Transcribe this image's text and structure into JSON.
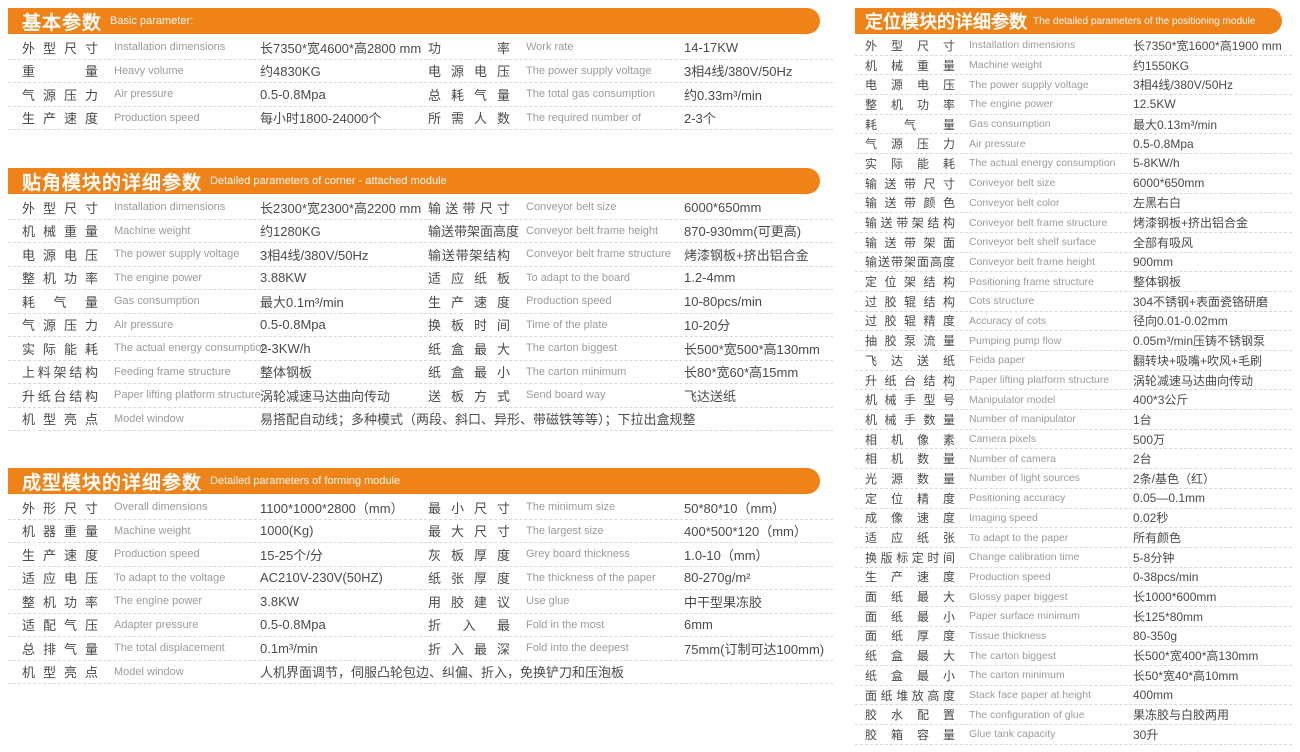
{
  "accent": "#f08318",
  "left_sections": [
    {
      "title_zh": "基本参数",
      "title_en": "Basic parameter:",
      "col_left": [
        {
          "zh": "外型尺寸",
          "en": "Installation dimensions",
          "val": "长7350*宽4600*高2800 mm"
        },
        {
          "zh": "重量",
          "en": "Heavy volume",
          "val": "约4830KG"
        },
        {
          "zh": "气源压力",
          "en": "Air pressure",
          "val": "0.5-0.8Mpa"
        },
        {
          "zh": "生产速度",
          "en": "Production speed",
          "val": "每小时1800-24000个"
        }
      ],
      "col_right": [
        {
          "zh": "功率",
          "en": "Work rate",
          "val": "14-17KW"
        },
        {
          "zh": "电源电压",
          "en": "The power supply voltage",
          "val": "3相4线/380V/50Hz"
        },
        {
          "zh": "总耗气量",
          "en": "The total gas consumption",
          "val": "约0.33m³/min"
        },
        {
          "zh": "所需人数",
          "en": "The required number of",
          "val": "2-3个"
        }
      ],
      "footer": null
    },
    {
      "title_zh": "贴角模块的详细参数",
      "title_en": "Detailed parameters of corner - attached module",
      "col_left": [
        {
          "zh": "外型尺寸",
          "en": "Installation dimensions",
          "val": "长2300*宽2300*高2200 mm"
        },
        {
          "zh": "机械重量",
          "en": "Machine weight",
          "val": "约1280KG"
        },
        {
          "zh": "电源电压",
          "en": "The power supply voltage",
          "val": "3相4线/380V/50Hz"
        },
        {
          "zh": "整机功率",
          "en": "The engine power",
          "val": "3.88KW"
        },
        {
          "zh": "耗气量",
          "en": "Gas consumption",
          "val": "最大0.1m³/min"
        },
        {
          "zh": "气源压力",
          "en": "Air pressure",
          "val": "0.5-0.8Mpa"
        },
        {
          "zh": "实际能耗",
          "en": "The actual energy consumption",
          "val": "2-3KW/h"
        },
        {
          "zh": "上料架结构",
          "en": "Feeding frame structure",
          "val": "整体钢板"
        },
        {
          "zh": "升纸台结构",
          "en": "Paper lifting platform structure",
          "val": "涡轮减速马达曲向传动"
        }
      ],
      "col_right": [
        {
          "zh": "输送带尺寸",
          "en": "Conveyor belt size",
          "val": "6000*650mm"
        },
        {
          "zh": "输送带架面高度",
          "en": "Conveyor belt frame height",
          "val": "870-930mm(可更高)"
        },
        {
          "zh": "输送带架结构",
          "en": "Conveyor belt frame structure",
          "val": "烤漆钢板+挤出铝合金"
        },
        {
          "zh": "适应纸板",
          "en": "To adapt to the board",
          "val": "1.2-4mm"
        },
        {
          "zh": "生产速度",
          "en": "Production speed",
          "val": "10-80pcs/min"
        },
        {
          "zh": "换板时间",
          "en": "Time of the plate",
          "val": "10-20分"
        },
        {
          "zh": "纸盒最大",
          "en": "The carton biggest",
          "val": "长500*宽500*高130mm"
        },
        {
          "zh": "纸盒最小",
          "en": "The carton minimum",
          "val": "长80*宽60*高15mm"
        },
        {
          "zh": "送板方式",
          "en": "Send board way",
          "val": "飞达送纸"
        }
      ],
      "footer": {
        "zh": "机型亮点",
        "en": "Model window",
        "val": "易搭配自动线；多种模式（两段、斜口、异形、带磁铁等等）；下拉出盒规整"
      }
    },
    {
      "title_zh": "成型模块的详细参数",
      "title_en": "Detailed parameters of forming module",
      "col_left": [
        {
          "zh": "外形尺寸",
          "en": "Overall dimensions",
          "val": "1100*1000*2800（mm）"
        },
        {
          "zh": "机器重量",
          "en": "Machine weight",
          "val": "1000(Kg)"
        },
        {
          "zh": "生产速度",
          "en": "Production speed",
          "val": "15-25个/分"
        },
        {
          "zh": "适应电压",
          "en": "To adapt to the voltage",
          "val": "AC210V-230V(50HZ)"
        },
        {
          "zh": "整机功率",
          "en": "The engine power",
          "val": "3.8KW"
        },
        {
          "zh": "适配气压",
          "en": "Adapter pressure",
          "val": "0.5-0.8Mpa"
        },
        {
          "zh": "总排气量",
          "en": "The total displacement",
          "val": "0.1m³/min"
        }
      ],
      "col_right": [
        {
          "zh": "最小尺寸",
          "en": "The minimum size",
          "val": "50*80*10（mm）"
        },
        {
          "zh": "最大尺寸",
          "en": "The largest size",
          "val": "400*500*120（mm）"
        },
        {
          "zh": "灰板厚度",
          "en": "Grey board thickness",
          "val": "1.0-10（mm）"
        },
        {
          "zh": "纸张厚度",
          "en": "The thickness of the paper",
          "val": "80-270g/m²"
        },
        {
          "zh": "用胶建议",
          "en": "Use glue",
          "val": "中干型果冻胶"
        },
        {
          "zh": "折入最",
          "en": "Fold in the most",
          "val": "6mm"
        },
        {
          "zh": "折入最深",
          "en": "Fold into the deepest",
          "val": "75mm(订制可达100mm)"
        }
      ],
      "footer": {
        "zh": "机型亮点",
        "en": "Model window",
        "val": "人机界面调节，伺服凸轮包边、纠偏、折入，免换铲刀和压泡板"
      }
    }
  ],
  "right_section": {
    "title_zh": "定位模块的详细参数",
    "title_en": "The detailed parameters of the positioning module",
    "rows": [
      {
        "zh": "外型尺寸",
        "en": "Installation dimensions",
        "val": "长7350*宽1600*高1900 mm"
      },
      {
        "zh": "机械重量",
        "en": "Machine weight",
        "val": "约1550KG"
      },
      {
        "zh": "电源电压",
        "en": "The power supply voltage",
        "val": "3相4线/380V/50Hz"
      },
      {
        "zh": "整机功率",
        "en": "The engine power",
        "val": "12.5KW"
      },
      {
        "zh": "耗气量",
        "en": "Gas consumption",
        "val": "最大0.13m³/min"
      },
      {
        "zh": "气源压力",
        "en": "Air pressure",
        "val": "0.5-0.8Mpa"
      },
      {
        "zh": "实际能耗",
        "en": "The actual energy consumption",
        "val": "5-8KW/h"
      },
      {
        "zh": "输送带尺寸",
        "en": "Conveyor belt size",
        "val": "6000*650mm"
      },
      {
        "zh": "输送带颜色",
        "en": "Conveyor belt color",
        "val": "左黑右白"
      },
      {
        "zh": "输送带架结构",
        "en": "Conveyor belt frame structure",
        "val": "烤漆钢板+挤出铝合金"
      },
      {
        "zh": "输送带架面",
        "en": "Conveyor belt shelf surface",
        "val": "全部有吸风"
      },
      {
        "zh": "输送带架面高度",
        "en": "Conveyor belt frame height",
        "val": "900mm"
      },
      {
        "zh": "定位架结构",
        "en": "Positioning frame structure",
        "val": "整体钢板"
      },
      {
        "zh": "过胶辊结构",
        "en": "Cots structure",
        "val": "304不锈钢+表面瓷铬研磨"
      },
      {
        "zh": "过胶辊精度",
        "en": "Accuracy of cots",
        "val": "径向0.01-0.02mm"
      },
      {
        "zh": "抽胶泵流量",
        "en": "Pumping pump flow",
        "val": "0.05m³/min压铸不锈钢泵"
      },
      {
        "zh": "飞达送纸",
        "en": "Feida paper",
        "val": "翻转块+吸嘴+吹风+毛刷"
      },
      {
        "zh": "升纸台结构",
        "en": "Paper lifting platform structure",
        "val": "涡轮减速马达曲向传动"
      },
      {
        "zh": "机械手型号",
        "en": "Manipulator model",
        "val": "400*3公斤"
      },
      {
        "zh": "机械手数量",
        "en": "Number of manipulator",
        "val": "1台"
      },
      {
        "zh": "相机像素",
        "en": "Camera pixels",
        "val": "500万"
      },
      {
        "zh": "相机数量",
        "en": "Number of camera",
        "val": "2台"
      },
      {
        "zh": "光源数量",
        "en": "Number of light sources",
        "val": "2条/基色（红）"
      },
      {
        "zh": "定位精度",
        "en": "Positioning accuracy",
        "val": "0.05—0.1mm"
      },
      {
        "zh": "成像速度",
        "en": "Imaging speed",
        "val": "0.02秒"
      },
      {
        "zh": "适应纸张",
        "en": "To adapt to the paper",
        "val": "所有颜色"
      },
      {
        "zh": "换版标定时间",
        "en": "Change calibration time",
        "val": "5-8分钟"
      },
      {
        "zh": "生产速度",
        "en": "Production speed",
        "val": "0-38pcs/min"
      },
      {
        "zh": "面纸最大",
        "en": "Glossy paper biggest",
        "val": "长1000*600mm"
      },
      {
        "zh": "面纸最小",
        "en": "Paper surface minimum",
        "val": "长125*80mm"
      },
      {
        "zh": "面纸厚度",
        "en": "Tissue thickness",
        "val": "80-350g"
      },
      {
        "zh": "纸盒最大",
        "en": "The carton biggest",
        "val": "长500*宽400*高130mm"
      },
      {
        "zh": "纸盒最小",
        "en": "The carton minimum",
        "val": "长50*宽40*高10mm"
      },
      {
        "zh": "面纸堆放高度",
        "en": "Stack face paper at height",
        "val": "400mm"
      },
      {
        "zh": "胶水配置",
        "en": "The configuration of glue",
        "val": "果冻胶与白胶两用"
      },
      {
        "zh": "胶箱容量",
        "en": "Glue tank capacity",
        "val": "30升"
      }
    ]
  }
}
